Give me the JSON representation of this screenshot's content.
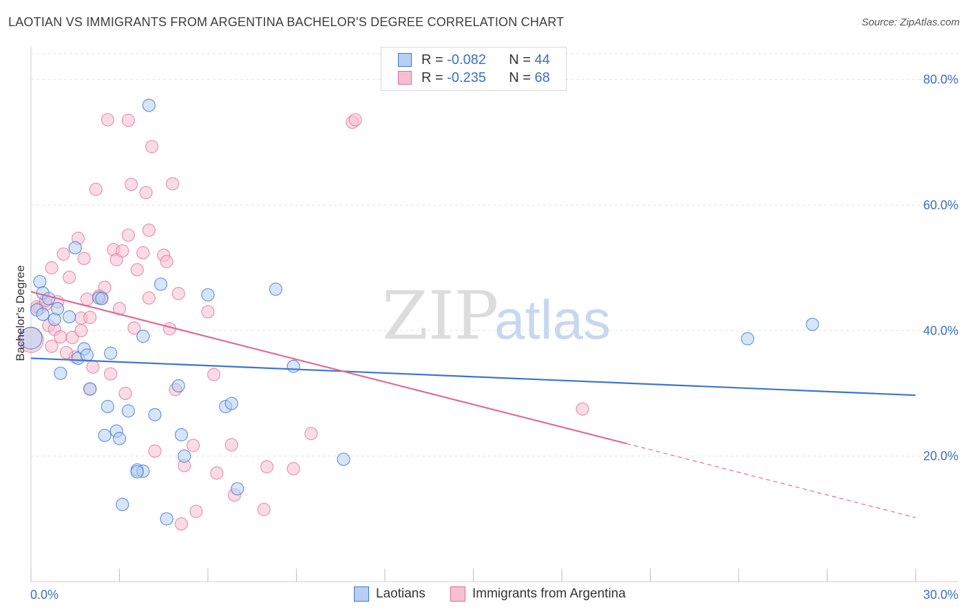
{
  "title": "LAOTIAN VS IMMIGRANTS FROM ARGENTINA BACHELOR'S DEGREE CORRELATION CHART",
  "source": "Source: ZipAtlas.com",
  "watermark": {
    "zip": "ZIP",
    "atlas": "atlas"
  },
  "legend": {
    "rows": [
      {
        "r_label": "R =",
        "r_value": "-0.082",
        "n_label": "N =",
        "n_value": "44"
      },
      {
        "r_label": "R =",
        "r_value": "-0.235",
        "n_label": "N =",
        "n_value": "68"
      }
    ],
    "bottom": [
      "Laotians",
      "Immigrants from Argentina"
    ]
  },
  "colors": {
    "blue": "#3a74d4",
    "blue_fill": "#b7cff2",
    "pink": "#e06a94",
    "pink_fill": "#f7bfd0",
    "tick_label": "#3a6fc4",
    "grid": "#e2e2e2"
  },
  "chart_data": {
    "type": "scatter",
    "title": "LAOTIAN VS IMMIGRANTS FROM ARGENTINA BACHELOR'S DEGREE CORRELATION CHART",
    "xlabel": "",
    "ylabel": "Bachelor's Degree",
    "xlim": [
      0,
      30
    ],
    "ylim": [
      0,
      85
    ],
    "x_tick_labels": [
      "0.0%",
      "30.0%"
    ],
    "y_ticks": [
      20,
      40,
      60,
      80
    ],
    "y_tick_labels": [
      "20.0%",
      "40.0%",
      "60.0%",
      "80.0%"
    ],
    "grid": true,
    "legend_position": "top-center",
    "series": [
      {
        "name": "Laotians",
        "color": "#3a74d4",
        "r": -0.082,
        "n": 44,
        "trend": {
          "x": [
            0,
            30
          ],
          "y": [
            35.6,
            29.7
          ]
        },
        "points": [
          [
            0.0,
            38.8
          ],
          [
            0.2,
            43.3
          ],
          [
            0.3,
            47.8
          ],
          [
            0.4,
            46.0
          ],
          [
            0.4,
            42.6
          ],
          [
            0.6,
            45.1
          ],
          [
            0.8,
            41.8
          ],
          [
            0.9,
            43.5
          ],
          [
            1.0,
            33.2
          ],
          [
            1.3,
            42.2
          ],
          [
            1.5,
            53.2
          ],
          [
            1.6,
            35.6
          ],
          [
            1.8,
            37.1
          ],
          [
            1.9,
            36.1
          ],
          [
            2.0,
            30.7
          ],
          [
            2.3,
            45.2
          ],
          [
            2.4,
            45.1
          ],
          [
            2.5,
            23.3
          ],
          [
            2.6,
            27.9
          ],
          [
            2.7,
            36.4
          ],
          [
            2.9,
            24.0
          ],
          [
            3.0,
            22.8
          ],
          [
            3.1,
            12.3
          ],
          [
            3.3,
            27.2
          ],
          [
            3.6,
            17.8
          ],
          [
            3.8,
            17.6
          ],
          [
            3.8,
            39.1
          ],
          [
            4.0,
            75.9
          ],
          [
            4.2,
            26.6
          ],
          [
            4.4,
            47.4
          ],
          [
            4.6,
            10.0
          ],
          [
            5.0,
            31.2
          ],
          [
            5.1,
            23.4
          ],
          [
            5.2,
            20.0
          ],
          [
            6.0,
            45.7
          ],
          [
            6.6,
            27.9
          ],
          [
            6.8,
            28.4
          ],
          [
            7.0,
            14.8
          ],
          [
            8.3,
            46.6
          ],
          [
            8.9,
            34.3
          ],
          [
            10.6,
            19.5
          ],
          [
            24.3,
            38.7
          ],
          [
            26.5,
            41.0
          ],
          [
            3.6,
            17.5
          ]
        ]
      },
      {
        "name": "Immigrants from Argentina",
        "color": "#e06a94",
        "r": -0.235,
        "n": 68,
        "trend": {
          "x": [
            0,
            20.2
          ],
          "y": [
            46.2,
            22.0
          ]
        },
        "trend_dashed": {
          "x": [
            20.2,
            30
          ],
          "y": [
            22.0,
            10.2
          ]
        },
        "points": [
          [
            0.0,
            38.5
          ],
          [
            0.2,
            43.8
          ],
          [
            0.3,
            43.6
          ],
          [
            0.5,
            44.2
          ],
          [
            0.5,
            44.8
          ],
          [
            0.6,
            40.8
          ],
          [
            0.7,
            37.5
          ],
          [
            0.7,
            50.0
          ],
          [
            0.8,
            40.2
          ],
          [
            1.0,
            39.0
          ],
          [
            1.1,
            52.2
          ],
          [
            1.3,
            48.5
          ],
          [
            1.4,
            38.9
          ],
          [
            1.5,
            35.8
          ],
          [
            1.6,
            54.7
          ],
          [
            1.7,
            42.0
          ],
          [
            1.7,
            40.0
          ],
          [
            1.8,
            51.5
          ],
          [
            1.9,
            45.0
          ],
          [
            2.0,
            30.7
          ],
          [
            2.1,
            34.2
          ],
          [
            2.2,
            62.5
          ],
          [
            2.4,
            45.3
          ],
          [
            2.5,
            46.9
          ],
          [
            2.6,
            73.6
          ],
          [
            2.7,
            33.1
          ],
          [
            2.8,
            52.9
          ],
          [
            2.9,
            51.3
          ],
          [
            3.0,
            43.5
          ],
          [
            3.2,
            30.0
          ],
          [
            3.3,
            73.5
          ],
          [
            3.3,
            55.2
          ],
          [
            3.4,
            63.3
          ],
          [
            3.5,
            40.4
          ],
          [
            3.6,
            49.7
          ],
          [
            3.8,
            52.4
          ],
          [
            3.9,
            62.0
          ],
          [
            4.0,
            56.0
          ],
          [
            4.0,
            45.2
          ],
          [
            4.1,
            69.3
          ],
          [
            4.2,
            20.8
          ],
          [
            4.5,
            52.0
          ],
          [
            4.6,
            51.0
          ],
          [
            4.7,
            40.3
          ],
          [
            4.8,
            63.4
          ],
          [
            4.9,
            30.6
          ],
          [
            5.0,
            45.9
          ],
          [
            5.1,
            9.2
          ],
          [
            5.2,
            18.5
          ],
          [
            5.5,
            21.7
          ],
          [
            5.6,
            11.2
          ],
          [
            6.0,
            43.0
          ],
          [
            6.2,
            33.0
          ],
          [
            6.3,
            17.3
          ],
          [
            6.8,
            21.8
          ],
          [
            6.9,
            13.8
          ],
          [
            7.9,
            11.5
          ],
          [
            8.0,
            18.3
          ],
          [
            8.9,
            18.0
          ],
          [
            9.5,
            23.6
          ],
          [
            10.9,
            73.2
          ],
          [
            11.0,
            73.6
          ],
          [
            18.7,
            27.5
          ],
          [
            2.0,
            42.1
          ],
          [
            1.2,
            36.5
          ],
          [
            0.9,
            44.6
          ],
          [
            2.3,
            45.5
          ],
          [
            3.1,
            52.7
          ]
        ]
      }
    ]
  }
}
